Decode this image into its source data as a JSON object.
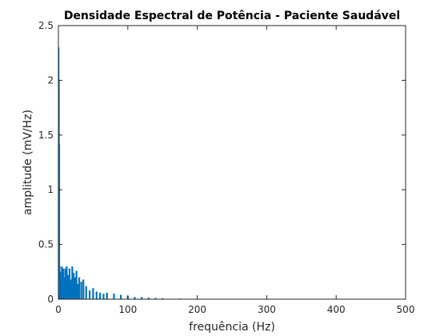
{
  "chart_data": {
    "type": "bar",
    "title": "Densidade Espectral de Potência - Paciente Saudável",
    "xlabel": "frequência (Hz)",
    "ylabel": "amplitude (mV/Hz)",
    "xlim": [
      0,
      500
    ],
    "ylim": [
      0,
      2.5
    ],
    "xticks": [
      0,
      100,
      200,
      300,
      400,
      500
    ],
    "xtick_labels": [
      "0",
      "100",
      "200",
      "300",
      "400",
      "500"
    ],
    "yticks": [
      0,
      0.5,
      1,
      1.5,
      2,
      2.5
    ],
    "ytick_labels": [
      "0",
      "0.5",
      "1",
      "1.5",
      "2",
      "2.5"
    ],
    "grid": false,
    "bar_color": "#0072BD",
    "series": [
      {
        "x": [
          0.5,
          1,
          1.5,
          2,
          3,
          4,
          5,
          6,
          7,
          8,
          10,
          12,
          14,
          16,
          18,
          20,
          22,
          24,
          26,
          28,
          30,
          33,
          36,
          40,
          45,
          50,
          55,
          60,
          65,
          70,
          80,
          90,
          100,
          110,
          120,
          130,
          140,
          150,
          175,
          200,
          250,
          300,
          350,
          400,
          450,
          500
        ],
        "values": [
          2.3,
          2.0,
          1.42,
          0.3,
          0.25,
          0.18,
          0.3,
          0.2,
          0.28,
          0.2,
          0.28,
          0.3,
          0.22,
          0.28,
          0.18,
          0.3,
          0.24,
          0.2,
          0.26,
          0.14,
          0.2,
          0.16,
          0.18,
          0.12,
          0.08,
          0.1,
          0.07,
          0.06,
          0.05,
          0.06,
          0.05,
          0.04,
          0.03,
          0.02,
          0.02,
          0.015,
          0.012,
          0.01,
          0.006,
          0.005,
          0.004,
          0.004,
          0.003,
          0.003,
          0.003,
          0.003
        ]
      }
    ]
  }
}
